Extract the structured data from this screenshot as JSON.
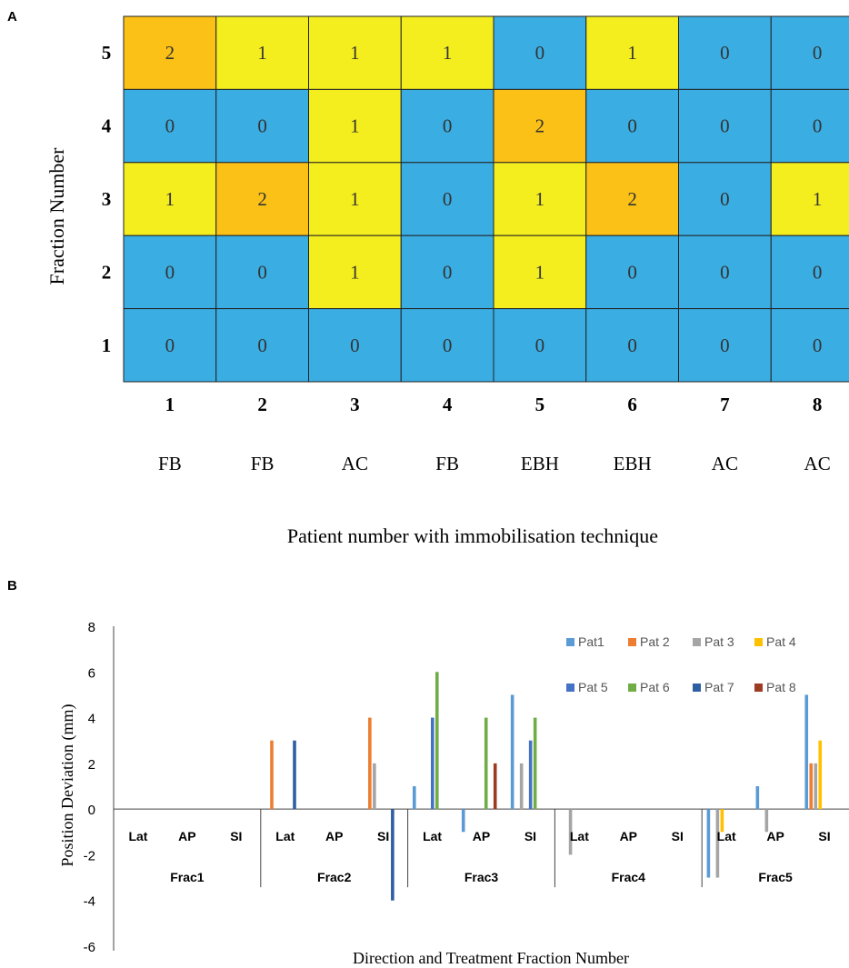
{
  "chart_data": [
    {
      "panel_label": "A",
      "type": "heatmap",
      "xlabel": "Patient number with immobilisation technique",
      "ylabel": "Fraction Number",
      "x_categories": [
        "1",
        "2",
        "3",
        "4",
        "5",
        "6",
        "7",
        "8"
      ],
      "x_sublabels": [
        "FB",
        "FB",
        "AC",
        "FB",
        "EBH",
        "EBH",
        "AC",
        "AC"
      ],
      "y_categories": [
        "5",
        "4",
        "3",
        "2",
        "1"
      ],
      "values": [
        [
          2,
          1,
          1,
          1,
          0,
          1,
          0,
          0
        ],
        [
          0,
          0,
          1,
          0,
          2,
          0,
          0,
          0
        ],
        [
          1,
          2,
          1,
          0,
          1,
          2,
          0,
          1
        ],
        [
          0,
          0,
          1,
          0,
          1,
          0,
          0,
          0
        ],
        [
          0,
          0,
          0,
          0,
          0,
          0,
          0,
          0
        ]
      ],
      "colors": {
        "0": "#3aade3",
        "1": "#f4ee1e",
        "2": "#fcc117"
      }
    },
    {
      "panel_label": "B",
      "type": "bar",
      "xlabel": "Direction and Treatment Fraction Number",
      "ylabel": "Position  Deviation (mm)",
      "ylim": [
        -6,
        8
      ],
      "yticks": [
        "8",
        "6",
        "4",
        "2",
        "0",
        "-2",
        "-4",
        "-6"
      ],
      "groups": [
        "Frac1",
        "Frac2",
        "Frac3",
        "Frac4",
        "Frac5"
      ],
      "directions": [
        "Lat",
        "AP",
        "SI"
      ],
      "legend_position": "top-right",
      "series": [
        {
          "name": "Pat1",
          "color": "#5b9bd5",
          "values": [
            0,
            0,
            0,
            0,
            0,
            0,
            1,
            -1,
            5,
            0,
            0,
            0,
            -3,
            1,
            5
          ]
        },
        {
          "name": "Pat 2",
          "color": "#ed7d31",
          "values": [
            0,
            0,
            0,
            3,
            0,
            4,
            0,
            0,
            0,
            0,
            0,
            0,
            0,
            0,
            2
          ]
        },
        {
          "name": "Pat 3",
          "color": "#a5a5a5",
          "values": [
            0,
            0,
            0,
            0,
            0,
            2,
            0,
            0,
            2,
            -2,
            0,
            0,
            -3,
            -1,
            2
          ]
        },
        {
          "name": "Pat 4",
          "color": "#ffc000",
          "values": [
            0,
            0,
            0,
            0,
            0,
            0,
            0,
            0,
            0,
            0,
            0,
            0,
            -1,
            0,
            3
          ]
        },
        {
          "name": "Pat 5",
          "color": "#4472c4",
          "values": [
            0,
            0,
            0,
            0,
            0,
            0,
            4,
            0,
            3,
            0,
            0,
            0,
            0,
            0,
            0
          ]
        },
        {
          "name": "Pat 6",
          "color": "#70ad47",
          "values": [
            0,
            0,
            0,
            0,
            0,
            0,
            6,
            4,
            4,
            0,
            0,
            0,
            0,
            0,
            0
          ]
        },
        {
          "name": "Pat 7",
          "color": "#2e5fa3",
          "values": [
            0,
            0,
            0,
            3,
            0,
            -4,
            0,
            0,
            0,
            0,
            0,
            0,
            0,
            0,
            0
          ]
        },
        {
          "name": "Pat 8",
          "color": "#9e3b23",
          "values": [
            0,
            0,
            0,
            0,
            0,
            0,
            0,
            2,
            0,
            0,
            0,
            0,
            0,
            0,
            0
          ]
        }
      ]
    }
  ]
}
